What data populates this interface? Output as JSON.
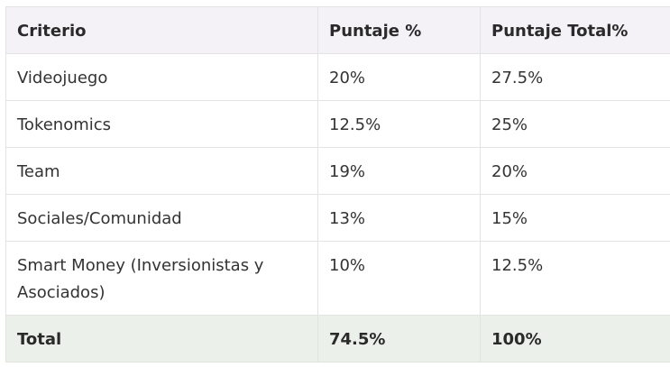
{
  "table": {
    "headers": [
      "Criterio",
      "Puntaje %",
      "Puntaje Total%"
    ],
    "rows": [
      [
        "Videojuego",
        "20%",
        "27.5%"
      ],
      [
        "Tokenomics",
        "12.5%",
        "25%"
      ],
      [
        "Team",
        "19%",
        "20%"
      ],
      [
        "Sociales/Comunidad",
        "13%",
        "15%"
      ],
      [
        "Smart Money (Inversionistas y Asociados)",
        "10%",
        "12.5%"
      ]
    ],
    "total": [
      "Total",
      "74.5%",
      "100%"
    ]
  }
}
